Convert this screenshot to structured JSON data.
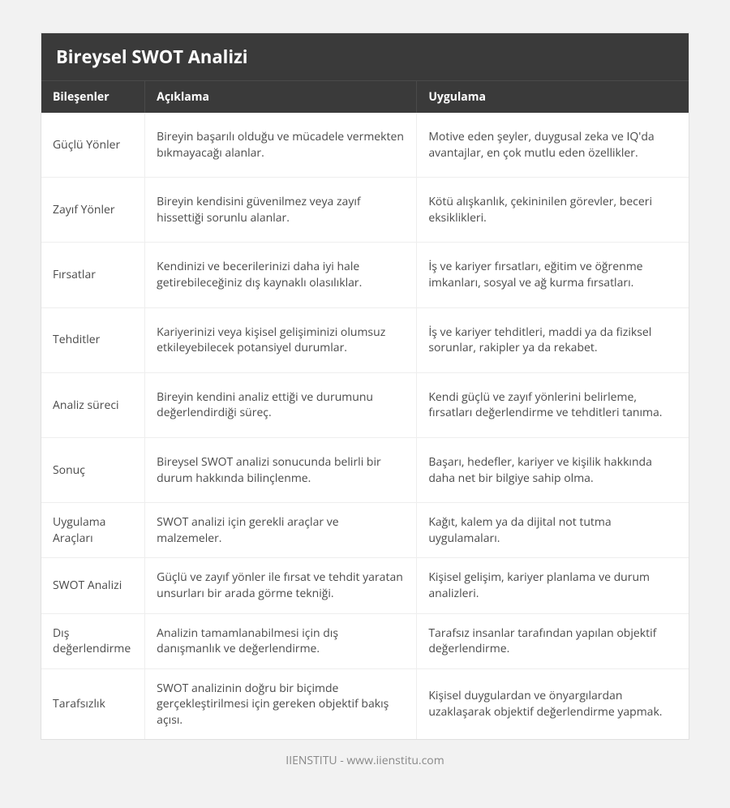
{
  "title": "Bireysel SWOT Analizi",
  "columns": [
    "Bileşenler",
    "Açıklama",
    "Uygulama"
  ],
  "rows": [
    {
      "c0": "Güçlü Yönler",
      "c1": "Bireyin başarılı olduğu ve mücadele vermekten bıkmayacağı alanlar.",
      "c2": "Motive eden şeyler, duygusal zeka ve IQ'da avantajlar, en çok mutlu eden özellikler.",
      "compact": false
    },
    {
      "c0": "Zayıf Yönler",
      "c1": "Bireyin kendisini güvenilmez veya zayıf hissettiği sorunlu alanlar.",
      "c2": "Kötü alışkanlık, çekininilen görevler, beceri eksiklikleri.",
      "compact": false
    },
    {
      "c0": "Fırsatlar",
      "c1": "Kendinizi ve becerilerinizi daha iyi hale getirebileceğiniz dış kaynaklı olasılıklar.",
      "c2": "İş ve kariyer fırsatları, eğitim ve öğrenme imkanları, sosyal ve ağ kurma fırsatları.",
      "compact": false
    },
    {
      "c0": "Tehditler",
      "c1": "Kariyerinizi veya kişisel gelişiminizi olumsuz etkileyebilecek potansiyel durumlar.",
      "c2": "İş ve kariyer tehditleri, maddi ya da fiziksel sorunlar, rakipler ya da rekabet.",
      "compact": false
    },
    {
      "c0": "Analiz süreci",
      "c1": "Bireyin kendini analiz ettiği ve durumunu değerlendirdiği süreç.",
      "c2": "Kendi güçlü ve zayıf yönlerini belirleme, fırsatları değerlendirme ve tehditleri tanıma.",
      "compact": false
    },
    {
      "c0": "Sonuç",
      "c1": "Bireysel SWOT analizi sonucunda belirli bir durum hakkında bilinçlenme.",
      "c2": "Başarı, hedefler, kariyer ve kişilik hakkında daha net bir bilgiye sahip olma.",
      "compact": false
    },
    {
      "c0": "Uygulama Araçları",
      "c1": "SWOT analizi için gerekli araçlar ve malzemeler.",
      "c2": "Kağıt, kalem ya da dijital not tutma uygulamaları.",
      "compact": true
    },
    {
      "c0": "SWOT Analizi",
      "c1": "Güçlü ve zayıf yönler ile fırsat ve tehdit yaratan unsurları bir arada görme tekniği.",
      "c2": "Kişisel gelişim, kariyer planlama ve durum analizleri.",
      "compact": true
    },
    {
      "c0": "Dış değerlendirme",
      "c1": "Analizin tamamlanabilmesi için dış danışmanlık ve değerlendirme.",
      "c2": "Tarafsız insanlar tarafından yapılan objektif değerlendirme.",
      "compact": true
    },
    {
      "c0": "Tarafsızlık",
      "c1": "SWOT analizinin doğru bir biçimde gerçekleştirilmesi için gereken objektif bakış açısı.",
      "c2": "Kişisel duygulardan ve önyargılardan uzaklaşarak objektif değerlendirme yapmak.",
      "compact": true
    }
  ],
  "footer": "IIENSTITU - www.iienstitu.com",
  "colors": {
    "page_bg": "#f2f2f2",
    "header_bg": "#3a3a3a",
    "header_fg": "#ffffff",
    "cell_fg": "#4a4a4a",
    "border": "#eeeeee",
    "footer_fg": "#888888"
  }
}
